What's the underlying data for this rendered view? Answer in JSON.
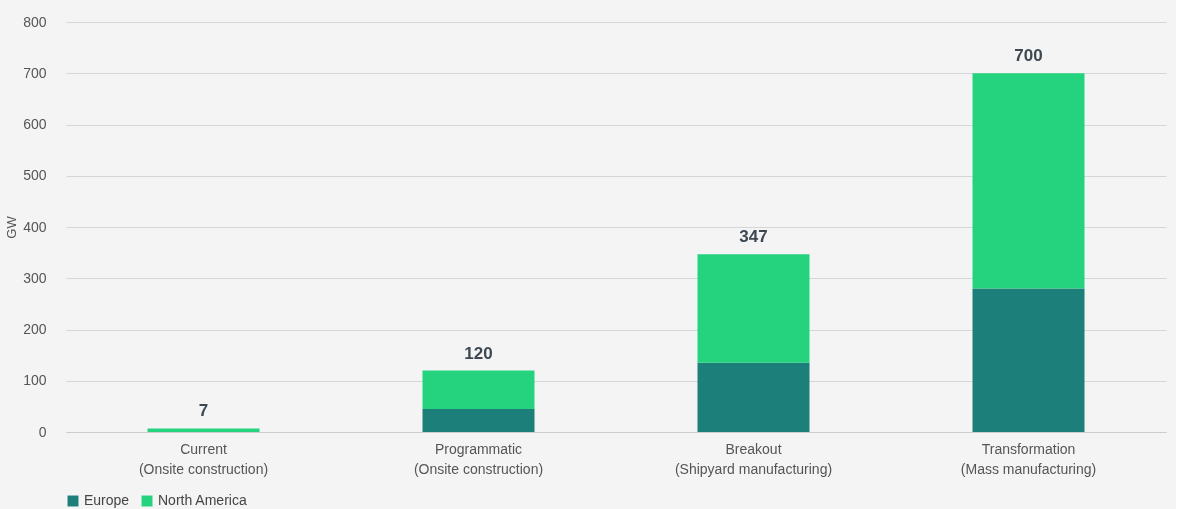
{
  "chart_data": {
    "type": "bar",
    "stacked": true,
    "ylabel": "GW",
    "categories": [
      "Current\n(Onsite construction)",
      "Programmatic\n(Onsite construction)",
      "Breakout\n(Shipyard manufacturing)",
      "Transformation\n(Mass manufacturing)"
    ],
    "series": [
      {
        "name": "Europe",
        "color": "#1d7f7a",
        "values": [
          0,
          45,
          135,
          280
        ]
      },
      {
        "name": "North America",
        "color": "#25d37e",
        "values": [
          7,
          75,
          212,
          420
        ]
      }
    ],
    "totals": [
      "7",
      "120",
      "347",
      "700"
    ],
    "ylim": [
      0,
      800
    ],
    "yticks": [
      0,
      100,
      200,
      300,
      400,
      500,
      600,
      700,
      800
    ],
    "grid": "y",
    "legend": "bottom"
  }
}
